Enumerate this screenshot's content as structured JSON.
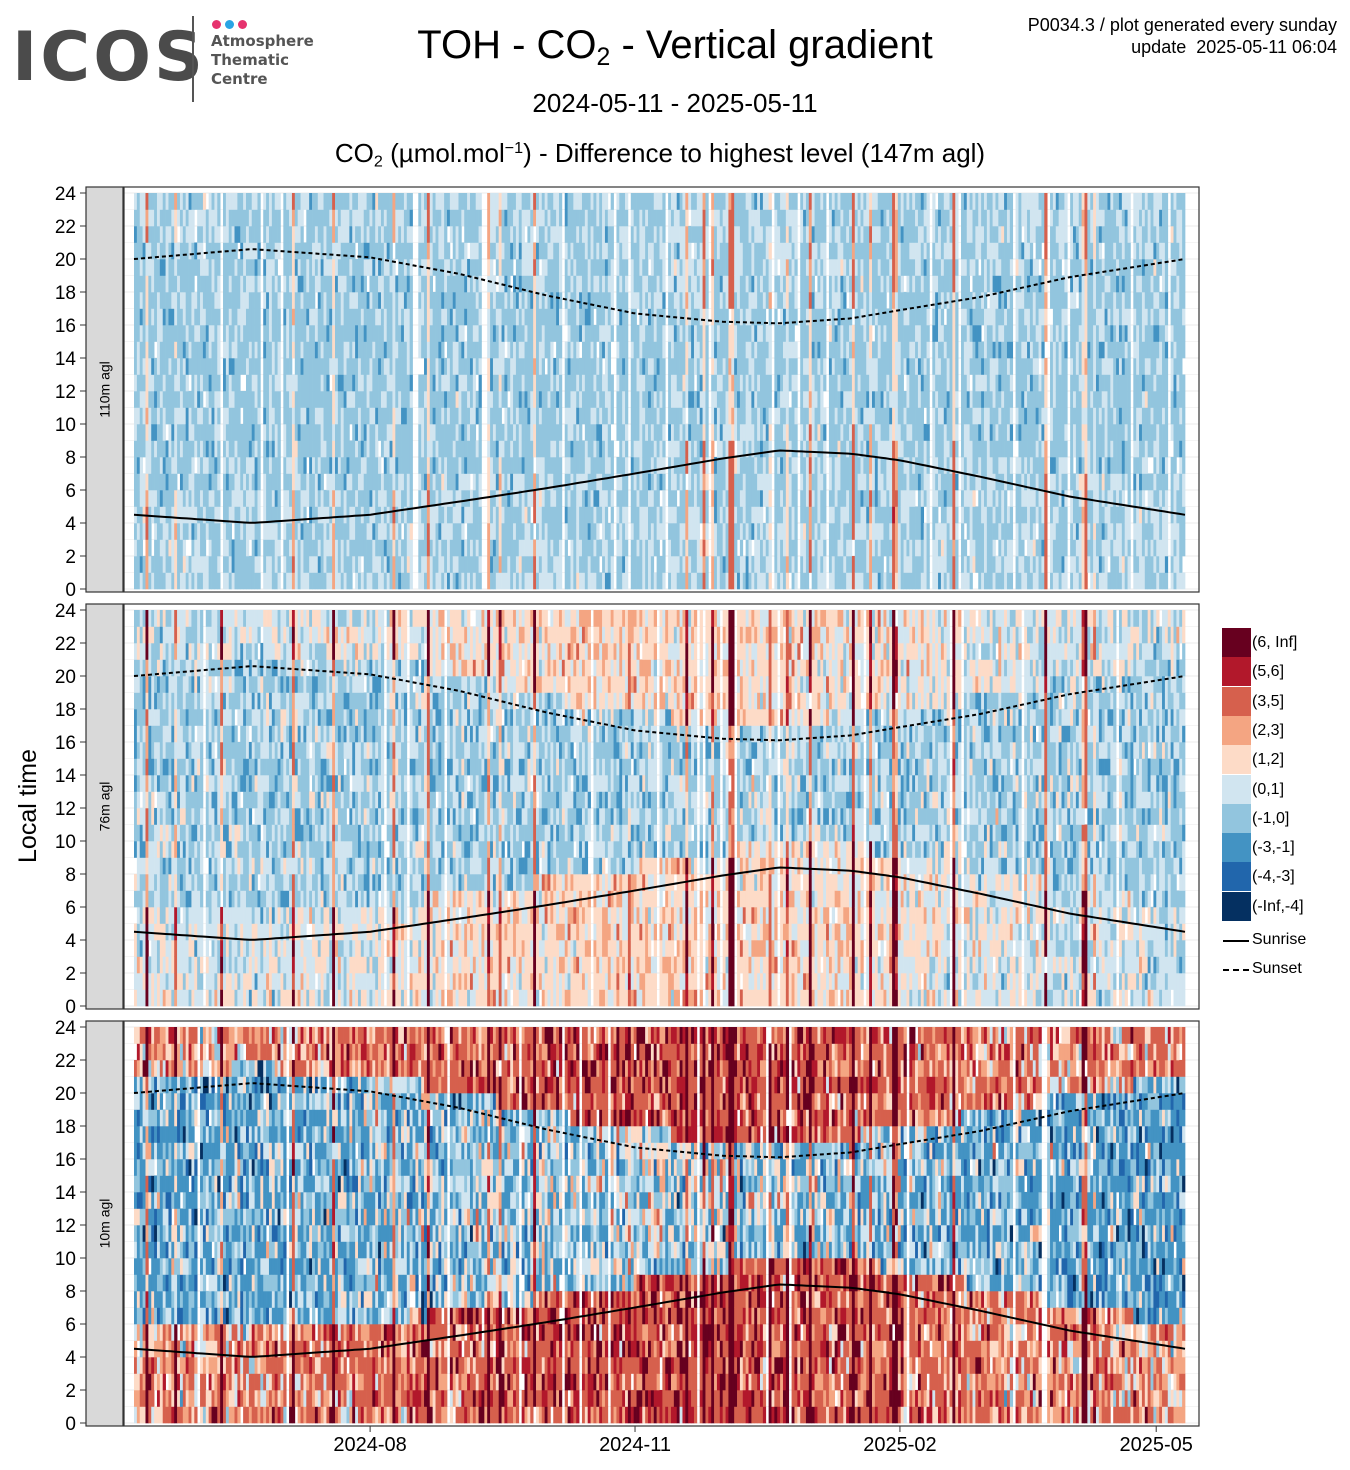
{
  "header": {
    "logo_text": "ICOS",
    "logo_sub_lines": [
      "Atmosphere",
      "Thematic",
      "Centre"
    ],
    "logo_dot_colors": [
      "#e6336e",
      "#2aa4e4",
      "#e6336e"
    ],
    "title_pre": "TOH - CO",
    "title_sub": "2",
    "title_post": " - Vertical gradient",
    "meta_line1": "P0034.3 / plot generated every sunday",
    "meta_line2": "update  2025-05-11 06:04",
    "date_range": "2024-05-11 - 2025-05-11",
    "subtitle_pre": "CO",
    "subtitle_sub": "2",
    "subtitle_mid": " (µmol.mol",
    "subtitle_sup": "−1",
    "subtitle_post": ") - Difference to highest level (147m agl)"
  },
  "chart_data": {
    "type": "heatmap",
    "ylabel": "Local time",
    "ylim": [
      0,
      24
    ],
    "y_ticks": [
      0,
      2,
      4,
      6,
      8,
      10,
      12,
      14,
      16,
      18,
      20,
      22,
      24
    ],
    "x_range": [
      "2024-05-11",
      "2025-05-11"
    ],
    "x_ticks": [
      {
        "date": "2024-08-01",
        "label": "2024-08"
      },
      {
        "date": "2024-11-01",
        "label": "2024-11"
      },
      {
        "date": "2025-02-01",
        "label": "2025-02"
      },
      {
        "date": "2025-05-01",
        "label": "2025-05"
      }
    ],
    "panels": [
      {
        "label": "110m agl"
      },
      {
        "label": "76m agl"
      },
      {
        "label": "10m agl"
      }
    ],
    "color_classes": [
      {
        "label": "(6, Inf]",
        "color": "#67001f"
      },
      {
        "label": "(5,6]",
        "color": "#b2182b"
      },
      {
        "label": "(3,5]",
        "color": "#d6604d"
      },
      {
        "label": "(2,3]",
        "color": "#f4a582"
      },
      {
        "label": "(1,2]",
        "color": "#fddbc7"
      },
      {
        "label": "(0,1]",
        "color": "#d1e5f0"
      },
      {
        "label": "(-1,0]",
        "color": "#92c5de"
      },
      {
        "label": "(-3,-1]",
        "color": "#4393c3"
      },
      {
        "label": "(-4,-3]",
        "color": "#2166ac"
      },
      {
        "label": "(-Inf,-4]",
        "color": "#053061"
      }
    ],
    "lines": [
      {
        "name": "Sunrise",
        "style": "solid",
        "points": [
          [
            "2024-05-11",
            4.5
          ],
          [
            "2024-06-21",
            4.0
          ],
          [
            "2024-08-01",
            4.5
          ],
          [
            "2024-09-01",
            5.3
          ],
          [
            "2024-10-01",
            6.1
          ],
          [
            "2024-11-01",
            7.0
          ],
          [
            "2024-12-01",
            7.9
          ],
          [
            "2024-12-21",
            8.4
          ],
          [
            "2025-01-15",
            8.2
          ],
          [
            "2025-02-01",
            7.8
          ],
          [
            "2025-03-01",
            6.8
          ],
          [
            "2025-04-01",
            5.6
          ],
          [
            "2025-05-11",
            4.5
          ]
        ]
      },
      {
        "name": "Sunset",
        "style": "dashed",
        "points": [
          [
            "2024-05-11",
            20.0
          ],
          [
            "2024-06-21",
            20.6
          ],
          [
            "2024-08-01",
            20.1
          ],
          [
            "2024-09-01",
            19.1
          ],
          [
            "2024-10-01",
            17.8
          ],
          [
            "2024-11-01",
            16.7
          ],
          [
            "2024-12-01",
            16.2
          ],
          [
            "2024-12-21",
            16.1
          ],
          [
            "2025-01-15",
            16.4
          ],
          [
            "2025-02-01",
            16.9
          ],
          [
            "2025-03-01",
            17.7
          ],
          [
            "2025-04-01",
            18.9
          ],
          [
            "2025-05-11",
            20.0
          ]
        ]
      }
    ]
  }
}
